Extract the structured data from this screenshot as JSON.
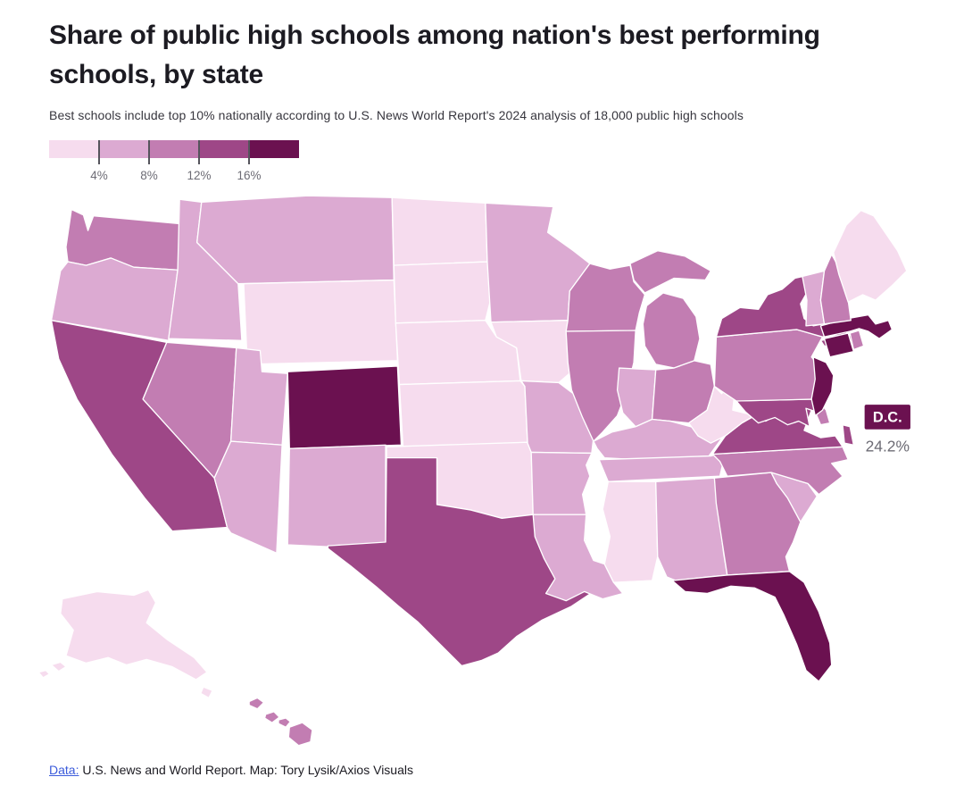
{
  "header": {
    "title_line1": "Share of public high schools among nation's best performing",
    "title_line2": "schools, by state",
    "subtitle": "Best schools include top 10% nationally according to U.S. News World Report's 2024 analysis of 18,000 public high schools"
  },
  "colors": {
    "scale": [
      "#f6dcee",
      "#dcaad2",
      "#c27db2",
      "#9e4787",
      "#6b1150"
    ],
    "tick": "#55545c",
    "tick_label": "#6d6c75",
    "dc_badge": "#6b1150",
    "dc_value_text": "#6d6c75",
    "footer_link": "#3b5bdb"
  },
  "legend": {
    "tick_labels": [
      "4%",
      "8%",
      "12%",
      "16%"
    ],
    "bins": [
      "<4%",
      "4-8%",
      "8-12%",
      "12-16%",
      ">16%"
    ]
  },
  "chart_data": {
    "type": "heatmap",
    "subtype": "us-choropleth",
    "title": "Share of public high schools among nation's best performing schools, by state",
    "unit": "%",
    "legend_ticks": [
      4,
      8,
      12,
      16
    ],
    "bins": [
      "<4%",
      "4-8%",
      "8-12%",
      "12-16%",
      ">16%"
    ],
    "dc_callout": {
      "label": "D.C.",
      "value": "24.2%"
    },
    "states": [
      {
        "abbr": "WA",
        "name": "Washington",
        "bin": 3
      },
      {
        "abbr": "OR",
        "name": "Oregon",
        "bin": 2
      },
      {
        "abbr": "CA",
        "name": "California",
        "bin": 4
      },
      {
        "abbr": "NV",
        "name": "Nevada",
        "bin": 3
      },
      {
        "abbr": "ID",
        "name": "Idaho",
        "bin": 2
      },
      {
        "abbr": "MT",
        "name": "Montana",
        "bin": 2
      },
      {
        "abbr": "WY",
        "name": "Wyoming",
        "bin": 1
      },
      {
        "abbr": "UT",
        "name": "Utah",
        "bin": 2
      },
      {
        "abbr": "CO",
        "name": "Colorado",
        "bin": 5
      },
      {
        "abbr": "AZ",
        "name": "Arizona",
        "bin": 2
      },
      {
        "abbr": "NM",
        "name": "New Mexico",
        "bin": 2
      },
      {
        "abbr": "ND",
        "name": "North Dakota",
        "bin": 1
      },
      {
        "abbr": "SD",
        "name": "South Dakota",
        "bin": 1
      },
      {
        "abbr": "NE",
        "name": "Nebraska",
        "bin": 1
      },
      {
        "abbr": "KS",
        "name": "Kansas",
        "bin": 1
      },
      {
        "abbr": "OK",
        "name": "Oklahoma",
        "bin": 1
      },
      {
        "abbr": "TX",
        "name": "Texas",
        "bin": 4
      },
      {
        "abbr": "MN",
        "name": "Minnesota",
        "bin": 2
      },
      {
        "abbr": "IA",
        "name": "Iowa",
        "bin": 1
      },
      {
        "abbr": "MO",
        "name": "Missouri",
        "bin": 2
      },
      {
        "abbr": "AR",
        "name": "Arkansas",
        "bin": 2
      },
      {
        "abbr": "LA",
        "name": "Louisiana",
        "bin": 2
      },
      {
        "abbr": "WI",
        "name": "Wisconsin",
        "bin": 3
      },
      {
        "abbr": "IL",
        "name": "Illinois",
        "bin": 3
      },
      {
        "abbr": "MI",
        "name": "Michigan",
        "bin": 3
      },
      {
        "abbr": "IN",
        "name": "Indiana",
        "bin": 2
      },
      {
        "abbr": "OH",
        "name": "Ohio",
        "bin": 3
      },
      {
        "abbr": "KY",
        "name": "Kentucky",
        "bin": 2
      },
      {
        "abbr": "TN",
        "name": "Tennessee",
        "bin": 2
      },
      {
        "abbr": "MS",
        "name": "Mississippi",
        "bin": 1
      },
      {
        "abbr": "AL",
        "name": "Alabama",
        "bin": 2
      },
      {
        "abbr": "GA",
        "name": "Georgia",
        "bin": 3
      },
      {
        "abbr": "FL",
        "name": "Florida",
        "bin": 5
      },
      {
        "abbr": "SC",
        "name": "South Carolina",
        "bin": 2
      },
      {
        "abbr": "NC",
        "name": "North Carolina",
        "bin": 3
      },
      {
        "abbr": "VA",
        "name": "Virginia",
        "bin": 4
      },
      {
        "abbr": "WV",
        "name": "West Virginia",
        "bin": 1
      },
      {
        "abbr": "MD",
        "name": "Maryland",
        "bin": 4
      },
      {
        "abbr": "DE",
        "name": "Delaware",
        "bin": 3
      },
      {
        "abbr": "PA",
        "name": "Pennsylvania",
        "bin": 3
      },
      {
        "abbr": "NJ",
        "name": "New Jersey",
        "bin": 5
      },
      {
        "abbr": "NY",
        "name": "New York",
        "bin": 4
      },
      {
        "abbr": "CT",
        "name": "Connecticut",
        "bin": 5
      },
      {
        "abbr": "RI",
        "name": "Rhode Island",
        "bin": 3
      },
      {
        "abbr": "MA",
        "name": "Massachusetts",
        "bin": 5
      },
      {
        "abbr": "VT",
        "name": "Vermont",
        "bin": 2
      },
      {
        "abbr": "NH",
        "name": "New Hampshire",
        "bin": 3
      },
      {
        "abbr": "ME",
        "name": "Maine",
        "bin": 1
      },
      {
        "abbr": "AK",
        "name": "Alaska",
        "bin": 1
      },
      {
        "abbr": "HI",
        "name": "Hawaii",
        "bin": 3
      }
    ]
  },
  "footer": {
    "link_text": "Data:",
    "text": " U.S. News and World Report. Map: Tory Lysik/Axios Visuals"
  }
}
